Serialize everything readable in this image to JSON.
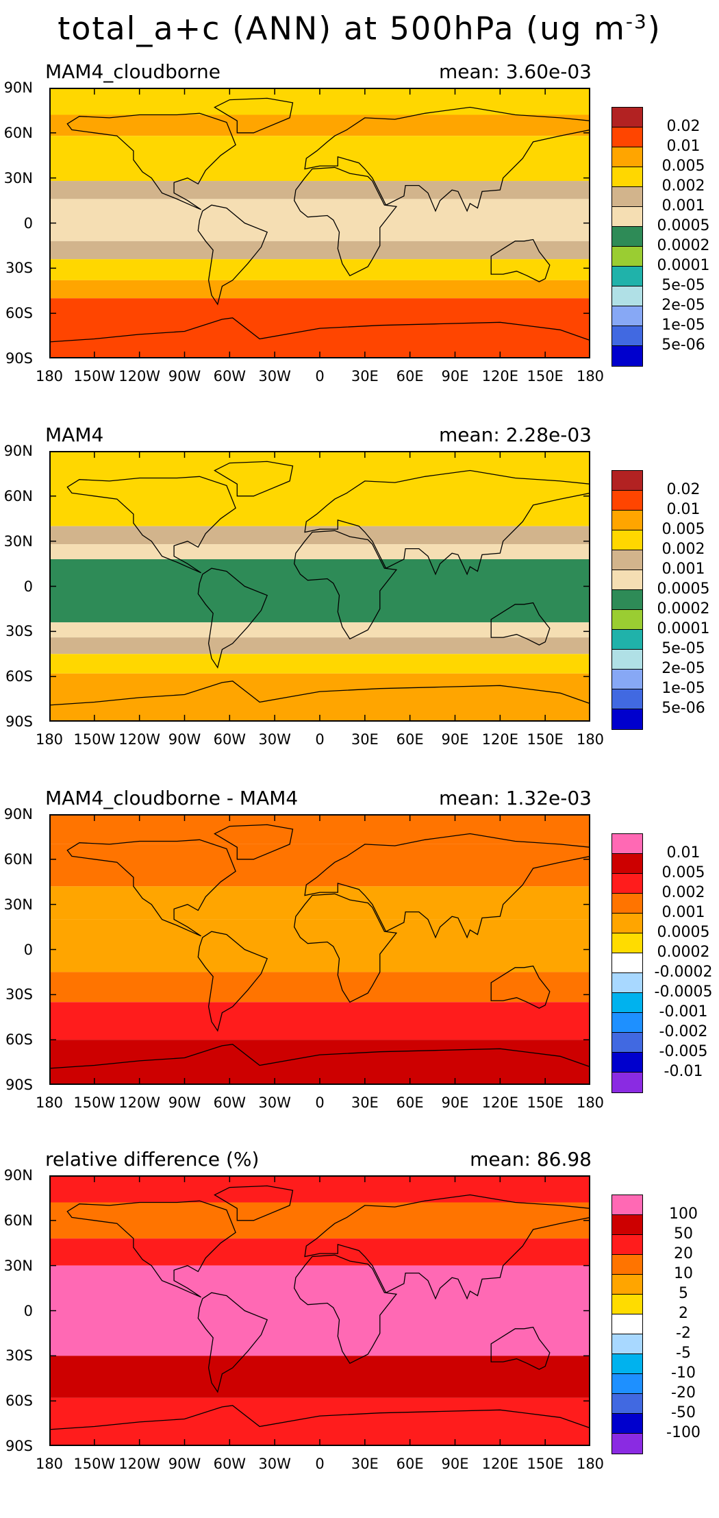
{
  "title": {
    "main": "total_a+c (ANN) at 500hPa (ug m",
    "superscript": "-3",
    "close": ")"
  },
  "chart_data": [
    {
      "type": "heatmap",
      "panel": "MAM4_cloudborne",
      "mean_text": "mean: 3.60e-03",
      "lat_ticks": [
        "90N",
        "60N",
        "30N",
        "0",
        "30S",
        "60S",
        "90S"
      ],
      "lon_ticks": [
        "180",
        "150W",
        "120W",
        "90W",
        "60W",
        "30W",
        "0",
        "30E",
        "60E",
        "90E",
        "120E",
        "150E",
        "180"
      ],
      "levels": [
        "0.02",
        "0.01",
        "0.005",
        "0.002",
        "0.001",
        "0.0005",
        "0.0002",
        "0.0001",
        "5e-05",
        "2e-05",
        "1e-05",
        "5e-06"
      ],
      "colors": [
        "#b22222",
        "#ff4500",
        "#ffa500",
        "#ffd700",
        "#d2b48c",
        "#f5deb3",
        "#2e8b57",
        "#9acd32",
        "#20b2aa",
        "#b0e0e6",
        "#87a8f5",
        "#4169e1",
        "#0000cd"
      ],
      "bands": [
        {
          "from": 90,
          "to": 72,
          "color_index": 3
        },
        {
          "from": 72,
          "to": 58,
          "color_index": 2
        },
        {
          "from": 58,
          "to": 28,
          "color_index": 3
        },
        {
          "from": 28,
          "to": 16,
          "color_index": 4
        },
        {
          "from": 16,
          "to": -12,
          "color_index": 5
        },
        {
          "from": -12,
          "to": -24,
          "color_index": 4
        },
        {
          "from": -24,
          "to": -38,
          "color_index": 3
        },
        {
          "from": -38,
          "to": -50,
          "color_index": 2
        },
        {
          "from": -50,
          "to": -90,
          "color_index": 1
        }
      ]
    },
    {
      "type": "heatmap",
      "panel": "MAM4",
      "mean_text": "mean: 2.28e-03",
      "lat_ticks": [
        "90N",
        "60N",
        "30N",
        "0",
        "30S",
        "60S",
        "90S"
      ],
      "lon_ticks": [
        "180",
        "150W",
        "120W",
        "90W",
        "60W",
        "30W",
        "0",
        "30E",
        "60E",
        "90E",
        "120E",
        "150E",
        "180"
      ],
      "levels": [
        "0.02",
        "0.01",
        "0.005",
        "0.002",
        "0.001",
        "0.0005",
        "0.0002",
        "0.0001",
        "5e-05",
        "2e-05",
        "1e-05",
        "5e-06"
      ],
      "colors": [
        "#b22222",
        "#ff4500",
        "#ffa500",
        "#ffd700",
        "#d2b48c",
        "#f5deb3",
        "#2e8b57",
        "#9acd32",
        "#20b2aa",
        "#b0e0e6",
        "#87a8f5",
        "#4169e1",
        "#0000cd"
      ],
      "bands": [
        {
          "from": 90,
          "to": 40,
          "color_index": 3
        },
        {
          "from": 40,
          "to": 28,
          "color_index": 4
        },
        {
          "from": 28,
          "to": 18,
          "color_index": 5
        },
        {
          "from": 18,
          "to": -24,
          "color_index": 6
        },
        {
          "from": -24,
          "to": -34,
          "color_index": 5
        },
        {
          "from": -34,
          "to": -45,
          "color_index": 4
        },
        {
          "from": -45,
          "to": -58,
          "color_index": 3
        },
        {
          "from": -58,
          "to": -90,
          "color_index": 2
        }
      ]
    },
    {
      "type": "heatmap",
      "panel": "MAM4_cloudborne - MAM4",
      "mean_text": "mean: 1.32e-03",
      "lat_ticks": [
        "90N",
        "60N",
        "30N",
        "0",
        "30S",
        "60S",
        "90S"
      ],
      "lon_ticks": [
        "180",
        "150W",
        "120W",
        "90W",
        "60W",
        "30W",
        "0",
        "30E",
        "60E",
        "90E",
        "120E",
        "150E",
        "180"
      ],
      "levels": [
        "0.01",
        "0.005",
        "0.002",
        "0.001",
        "0.0005",
        "0.0002",
        "-0.0002",
        "-0.0005",
        "-0.001",
        "-0.002",
        "-0.005",
        "-0.01"
      ],
      "colors": [
        "#ff69b4",
        "#cd0000",
        "#ff1c1c",
        "#ff7400",
        "#ffa500",
        "#ffdc00",
        "#ffffff",
        "#a8d8ff",
        "#00b2ee",
        "#1e90ff",
        "#4169e1",
        "#0000cd",
        "#8a2be2"
      ],
      "bands": [
        {
          "from": 90,
          "to": 70,
          "color_index": 3
        },
        {
          "from": 70,
          "to": 42,
          "color_index": 3
        },
        {
          "from": 42,
          "to": 20,
          "color_index": 4
        },
        {
          "from": 20,
          "to": -15,
          "color_index": 4
        },
        {
          "from": -15,
          "to": -35,
          "color_index": 3
        },
        {
          "from": -35,
          "to": -60,
          "color_index": 2
        },
        {
          "from": -60,
          "to": -90,
          "color_index": 1
        }
      ]
    },
    {
      "type": "heatmap",
      "panel": "relative difference (%)",
      "mean_text": "mean: 86.98",
      "lat_ticks": [
        "90N",
        "60N",
        "30N",
        "0",
        "30S",
        "60S",
        "90S"
      ],
      "lon_ticks": [
        "180",
        "150W",
        "120W",
        "90W",
        "60W",
        "30W",
        "0",
        "30E",
        "60E",
        "90E",
        "120E",
        "150E",
        "180"
      ],
      "levels": [
        "100",
        "50",
        "20",
        "10",
        "5",
        "2",
        "-2",
        "-5",
        "-10",
        "-20",
        "-50",
        "-100"
      ],
      "colors": [
        "#ff69b4",
        "#cd0000",
        "#ff1c1c",
        "#ff7400",
        "#ffa500",
        "#ffdc00",
        "#ffffff",
        "#a8d8ff",
        "#00b2ee",
        "#1e90ff",
        "#4169e1",
        "#0000cd",
        "#8a2be2"
      ],
      "bands": [
        {
          "from": 90,
          "to": 72,
          "color_index": 2
        },
        {
          "from": 72,
          "to": 48,
          "color_index": 3
        },
        {
          "from": 48,
          "to": 30,
          "color_index": 2
        },
        {
          "from": 30,
          "to": -30,
          "color_index": 0
        },
        {
          "from": -30,
          "to": -58,
          "color_index": 1
        },
        {
          "from": -58,
          "to": -90,
          "color_index": 2
        }
      ]
    }
  ]
}
